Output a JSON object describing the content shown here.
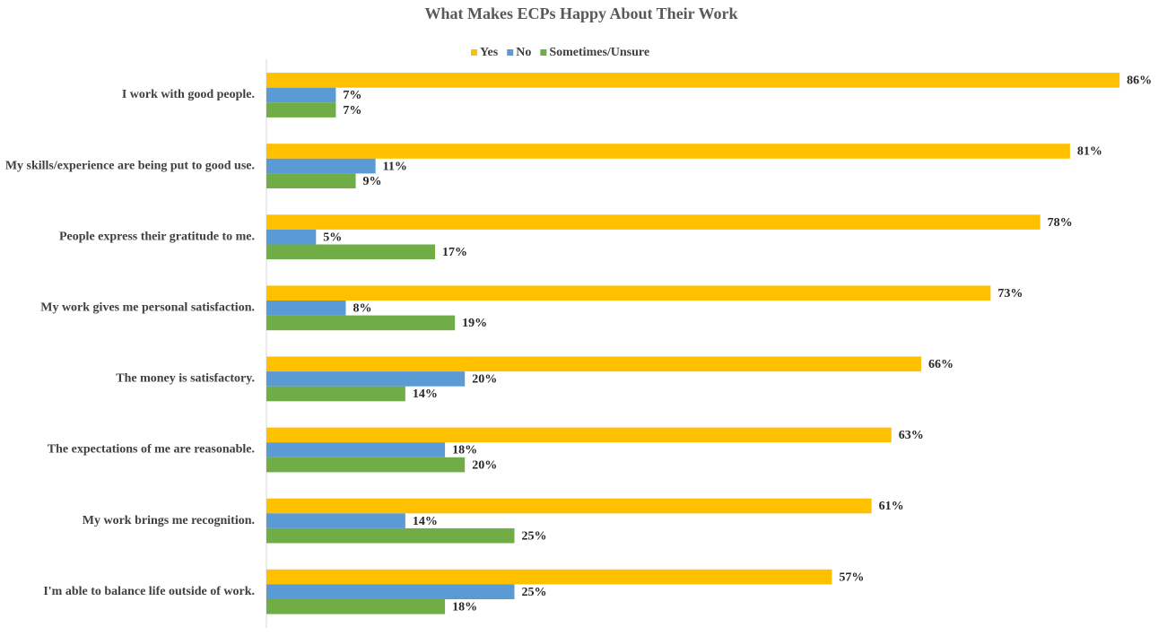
{
  "chart_data": {
    "type": "hbar",
    "title": "What Makes ECPs Happy About Their Work",
    "categories": [
      "I work with good people.",
      "My skills/experience are being put to good use.",
      "People express their gratitude to me.",
      "My work gives me personal satisfaction.",
      "The money is satisfactory.",
      "The expectations of me are reasonable.",
      "My work brings me recognition.",
      "I'm able to balance life outside of work."
    ],
    "series": [
      {
        "name": "Yes",
        "color": "#ffc000",
        "values": [
          86,
          81,
          78,
          73,
          66,
          63,
          61,
          57
        ],
        "value_labels": [
          "86%",
          "81%",
          "78%",
          "73%",
          "66%",
          "63%",
          "61%",
          "57%"
        ]
      },
      {
        "name": "No",
        "color": "#5b9bd5",
        "values": [
          7,
          11,
          5,
          8,
          20,
          18,
          14,
          25
        ],
        "value_labels": [
          "7%",
          "11%",
          "5%",
          "8%",
          "20%",
          "18%",
          "14%",
          "25%"
        ]
      },
      {
        "name": "Sometimes/Unsure",
        "color": "#70ad47",
        "values": [
          7,
          9,
          17,
          19,
          14,
          20,
          25,
          18
        ],
        "value_labels": [
          "7%",
          "9%",
          "17%",
          "19%",
          "14%",
          "20%",
          "25%",
          "18%"
        ]
      }
    ],
    "legend": "top"
  }
}
